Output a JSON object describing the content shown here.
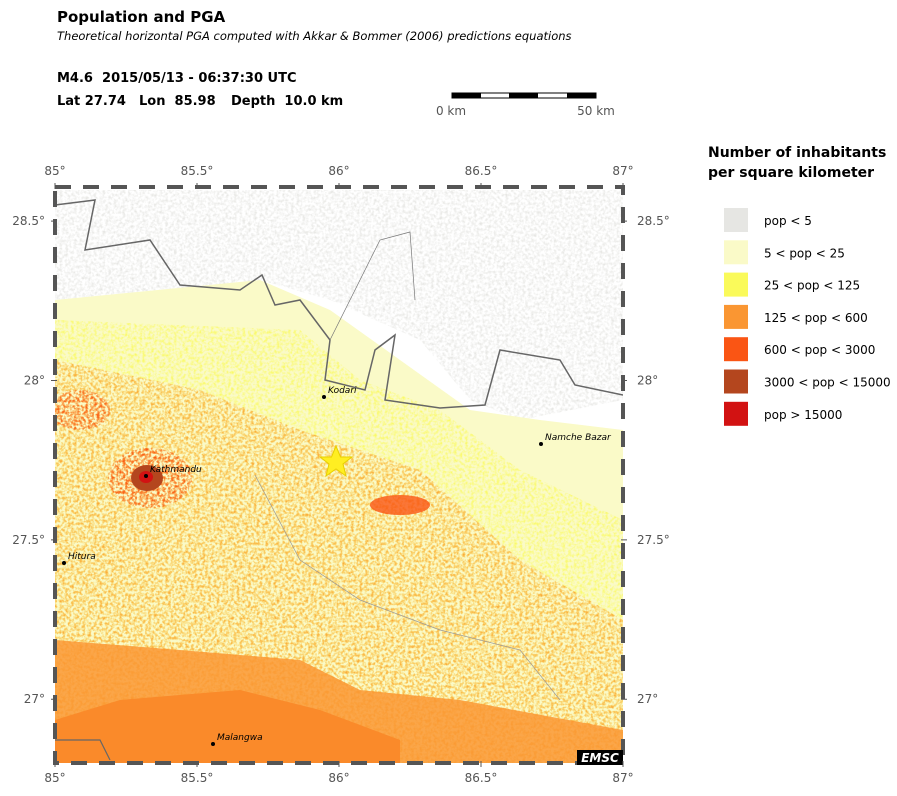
{
  "header": {
    "title": "Population and PGA",
    "subtitle": "Theoretical horizontal PGA computed with Akkar & Bommer (2006) predictions equations",
    "event": "M4.6  2015/05/13 - 06:37:30 UTC",
    "lat": "Lat 27.74",
    "lon": "Lon  85.98",
    "depth": "Depth  10.0 km"
  },
  "scale_bar": {
    "start": "0 km",
    "end": "50 km"
  },
  "map": {
    "lonlim": [
      85,
      87
    ],
    "latlim": [
      26.8,
      28.607
    ],
    "lon_ticks": [
      {
        "value": 85,
        "label": "85°"
      },
      {
        "value": 85.5,
        "label": "85.5°"
      },
      {
        "value": 86,
        "label": "86°"
      },
      {
        "value": 86.5,
        "label": "86.5°"
      },
      {
        "value": 87,
        "label": "87°"
      }
    ],
    "lat_ticks": [
      {
        "value": 28.5,
        "label": "28.5°"
      },
      {
        "value": 28,
        "label": "28°"
      },
      {
        "value": 27.5,
        "label": "27.5°"
      },
      {
        "value": 27,
        "label": "27°"
      }
    ],
    "cities": [
      "Kodari",
      "Kathmandu",
      "Namche Bazar",
      "Hitura",
      "Malangwa"
    ],
    "credit": "EMSC"
  },
  "legend": {
    "title": [
      "Number of inhabitants",
      "per square kilometer"
    ],
    "items": [
      {
        "label": "pop < 5",
        "color": "#e6e6e3"
      },
      {
        "label": "5 < pop < 25",
        "color": "#fafac8"
      },
      {
        "label": "25 < pop < 125",
        "color": "#fafa5a"
      },
      {
        "label": "125 < pop < 600",
        "color": "#fa9632"
      },
      {
        "label": "600 < pop < 3000",
        "color": "#fa5514"
      },
      {
        "label": "3000 < pop < 15000",
        "color": "#b4461e"
      },
      {
        "label": "pop > 15000",
        "color": "#d21212"
      }
    ]
  }
}
